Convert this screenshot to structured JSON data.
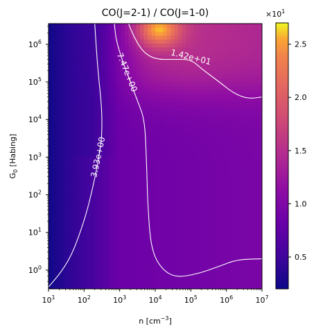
{
  "chart_data": {
    "type": "heatmap",
    "title": "CO(J=2-1) / CO(J=1-0)",
    "xlabel": {
      "base": "n [cm",
      "sup": "−3",
      "close": "]"
    },
    "ylabel": {
      "pre": "G",
      "sub": "0",
      "post": " [Habing]"
    },
    "x_scale": "log",
    "y_scale": "log",
    "xlim_log10": [
      1,
      7
    ],
    "ylim_log10": [
      -0.5,
      6.55
    ],
    "x_ticks": [
      {
        "base": "10",
        "exp": "1",
        "log": 1
      },
      {
        "base": "10",
        "exp": "2",
        "log": 2
      },
      {
        "base": "10",
        "exp": "3",
        "log": 3
      },
      {
        "base": "10",
        "exp": "4",
        "log": 4
      },
      {
        "base": "10",
        "exp": "5",
        "log": 5
      },
      {
        "base": "10",
        "exp": "6",
        "log": 6
      },
      {
        "base": "10",
        "exp": "7",
        "log": 7
      }
    ],
    "y_ticks": [
      {
        "base": "10",
        "exp": "0",
        "log": 0
      },
      {
        "base": "10",
        "exp": "1",
        "log": 1
      },
      {
        "base": "10",
        "exp": "2",
        "log": 2
      },
      {
        "base": "10",
        "exp": "3",
        "log": 3
      },
      {
        "base": "10",
        "exp": "4",
        "log": 4
      },
      {
        "base": "10",
        "exp": "5",
        "log": 5
      },
      {
        "base": "10",
        "exp": "6",
        "log": 6
      }
    ],
    "colormap": "plasma",
    "colorbar": {
      "range": [
        0.2,
        2.7
      ],
      "multiplier": {
        "base": "×10",
        "exp": "1"
      },
      "ticks": [
        {
          "label": "0.5",
          "value": 0.5
        },
        {
          "label": "1.0",
          "value": 1.0
        },
        {
          "label": "1.5",
          "value": 1.5
        },
        {
          "label": "2.0",
          "value": 2.0
        },
        {
          "label": "2.5",
          "value": 2.5
        }
      ]
    },
    "contours": [
      {
        "level_label": "3.93e+00",
        "points": [
          [
            1.0,
            -0.45
          ],
          [
            1.4,
            0.0
          ],
          [
            1.7,
            0.5
          ],
          [
            2.0,
            1.3
          ],
          [
            2.2,
            2.0
          ],
          [
            2.4,
            2.9
          ],
          [
            2.5,
            3.5
          ],
          [
            2.5,
            4.3
          ],
          [
            2.4,
            5.2
          ],
          [
            2.35,
            5.8
          ],
          [
            2.3,
            6.55
          ]
        ]
      },
      {
        "level_label": "7.47e+00",
        "points": [
          [
            2.85,
            6.55
          ],
          [
            2.9,
            6.1
          ],
          [
            3.1,
            5.5
          ],
          [
            3.3,
            5.0
          ],
          [
            3.5,
            4.5
          ],
          [
            3.7,
            4.0
          ],
          [
            3.75,
            3.0
          ],
          [
            3.8,
            1.5
          ],
          [
            3.9,
            0.5
          ],
          [
            4.2,
            0.0
          ],
          [
            4.6,
            -0.2
          ],
          [
            5.2,
            -0.1
          ],
          [
            5.8,
            0.1
          ],
          [
            6.3,
            0.28
          ],
          [
            7.0,
            0.3
          ]
        ]
      },
      {
        "level_label": "1.42e+01",
        "points": [
          [
            3.25,
            6.55
          ],
          [
            3.4,
            6.2
          ],
          [
            3.65,
            5.8
          ],
          [
            4.0,
            5.6
          ],
          [
            4.5,
            5.6
          ],
          [
            5.0,
            5.6
          ],
          [
            5.3,
            5.35
          ],
          [
            5.8,
            5.0
          ],
          [
            6.2,
            4.7
          ],
          [
            6.6,
            4.55
          ],
          [
            7.0,
            4.6
          ]
        ]
      }
    ]
  }
}
